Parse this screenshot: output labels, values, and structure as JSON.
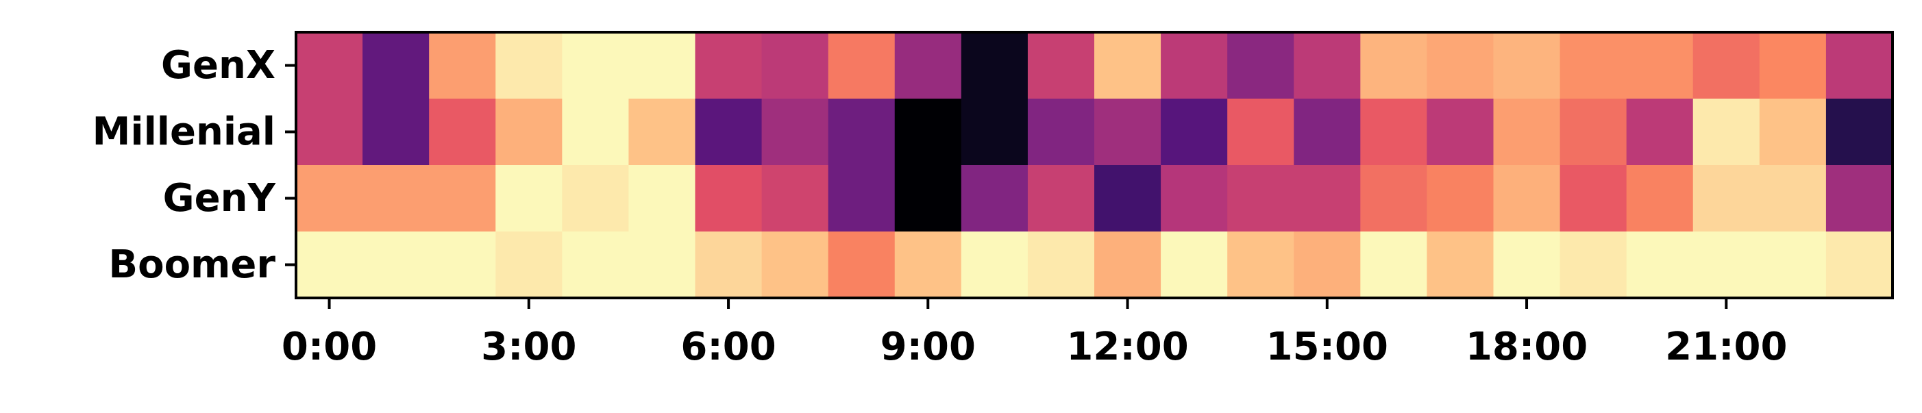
{
  "chart_data": {
    "type": "heatmap",
    "title": "",
    "xlabel": "",
    "ylabel": "",
    "colormap": "magma",
    "value_range": [
      0,
      1
    ],
    "grid": false,
    "legend": "none",
    "rows": [
      "GenX",
      "Millenial",
      "GenY",
      "Boomer"
    ],
    "columns": [
      "0:00",
      "1:00",
      "2:00",
      "3:00",
      "4:00",
      "5:00",
      "6:00",
      "7:00",
      "8:00",
      "9:00",
      "10:00",
      "11:00",
      "12:00",
      "13:00",
      "14:00",
      "15:00",
      "16:00",
      "17:00",
      "18:00",
      "19:00",
      "20:00",
      "21:00",
      "22:00",
      "23:00"
    ],
    "x_tick_labels": [
      "0:00",
      "3:00",
      "6:00",
      "9:00",
      "12:00",
      "15:00",
      "18:00",
      "21:00"
    ],
    "x_tick_positions": [
      0,
      3,
      6,
      9,
      12,
      15,
      18,
      21
    ],
    "values": [
      [
        0.55,
        0.3,
        0.8,
        0.96,
        0.99,
        0.99,
        0.55,
        0.52,
        0.72,
        0.43,
        0.05,
        0.55,
        0.88,
        0.52,
        0.4,
        0.52,
        0.85,
        0.82,
        0.85,
        0.77,
        0.77,
        0.7,
        0.75,
        0.52
      ],
      [
        0.55,
        0.3,
        0.65,
        0.84,
        0.99,
        0.88,
        0.28,
        0.45,
        0.33,
        0.0,
        0.05,
        0.38,
        0.45,
        0.27,
        0.65,
        0.38,
        0.65,
        0.52,
        0.8,
        0.7,
        0.52,
        0.96,
        0.88,
        0.15
      ],
      [
        0.8,
        0.8,
        0.8,
        0.99,
        0.96,
        0.99,
        0.62,
        0.57,
        0.33,
        0.0,
        0.38,
        0.55,
        0.22,
        0.5,
        0.55,
        0.55,
        0.7,
        0.74,
        0.84,
        0.65,
        0.74,
        0.92,
        0.92,
        0.45
      ],
      [
        0.99,
        0.99,
        0.99,
        0.96,
        0.99,
        0.99,
        0.92,
        0.88,
        0.74,
        0.88,
        0.99,
        0.96,
        0.84,
        0.99,
        0.88,
        0.84,
        0.99,
        0.88,
        0.99,
        0.96,
        0.99,
        0.99,
        0.99,
        0.96
      ]
    ]
  }
}
